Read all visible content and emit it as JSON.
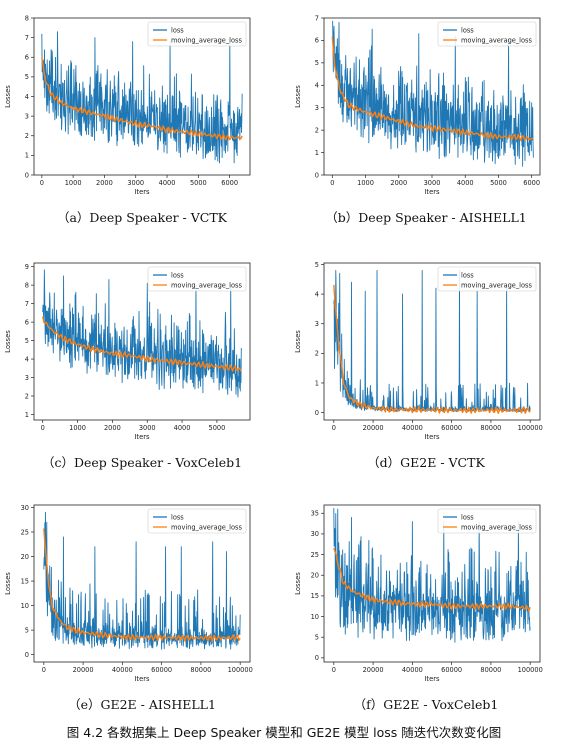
{
  "colors": {
    "raw": "#1f77b4",
    "avg": "#ff7f0e",
    "axis": "#222222"
  },
  "figure_caption": "图 4.2 各数据集上 Deep Speaker 模型和 GE2E 模型 loss 随迭代次数变化图",
  "chart_data": [
    {
      "type": "line",
      "caption": "（a）Deep Speaker - VCTK",
      "xlabel": "Iters",
      "ylabel": "Losses",
      "xlim": [
        -250,
        6650
      ],
      "ylim": [
        0,
        8
      ],
      "xticks": [
        0,
        1000,
        2000,
        3000,
        4000,
        5000,
        6000
      ],
      "yticks": [
        0,
        1,
        2,
        3,
        4,
        5,
        6,
        7,
        8
      ],
      "legend": "top-right",
      "series": [
        {
          "name": "loss",
          "profile": "ds",
          "xmax": 6400,
          "noise": [
            2.5,
            1.5,
            1.9
          ],
          "spikes": [
            [
              500,
              7.3
            ],
            [
              1700,
              7.0
            ],
            [
              2900,
              6.8
            ],
            [
              4100,
              6.8
            ],
            [
              6000,
              6.9
            ]
          ]
        },
        {
          "name": "moving_average_loss",
          "x": [
            0,
            100,
            300,
            600,
            1000,
            1500,
            2000,
            2500,
            3000,
            3500,
            4000,
            4500,
            5000,
            5500,
            6000,
            6400
          ],
          "y": [
            6.0,
            4.9,
            4.1,
            3.7,
            3.4,
            3.2,
            3.0,
            2.8,
            2.6,
            2.5,
            2.3,
            2.2,
            2.1,
            2.0,
            1.9,
            1.9
          ]
        }
      ]
    },
    {
      "type": "line",
      "caption": "（b）Deep Speaker - AISHELL1",
      "xlabel": "Iters",
      "ylabel": "Losses",
      "xlim": [
        -250,
        6250
      ],
      "ylim": [
        0,
        7
      ],
      "xticks": [
        0,
        1000,
        2000,
        3000,
        4000,
        5000,
        6000
      ],
      "yticks": [
        0,
        1,
        2,
        3,
        4,
        5,
        6,
        7
      ],
      "legend": "top-right",
      "series": [
        {
          "name": "loss",
          "profile": "ds",
          "xmax": 6050,
          "noise": [
            2.6,
            1.4,
            1.9
          ],
          "spikes": [
            [
              200,
              6.8
            ],
            [
              1200,
              6.5
            ],
            [
              2600,
              6.3
            ],
            [
              3700,
              6.2
            ],
            [
              5300,
              6.1
            ]
          ]
        },
        {
          "name": "moving_average_loss",
          "x": [
            0,
            80,
            250,
            500,
            1000,
            1500,
            2000,
            2500,
            3000,
            3500,
            4000,
            4500,
            5000,
            5500,
            6050
          ],
          "y": [
            6.1,
            4.8,
            3.7,
            3.1,
            2.8,
            2.6,
            2.4,
            2.2,
            2.1,
            2.0,
            1.9,
            1.8,
            1.7,
            1.7,
            1.6
          ]
        }
      ]
    },
    {
      "type": "line",
      "caption": "（c）Deep Speaker - VoxCeleb1",
      "xlabel": "Iters",
      "ylabel": "Losses",
      "xlim": [
        -250,
        5950
      ],
      "ylim": [
        0.7,
        9.2
      ],
      "xticks": [
        0,
        1000,
        2000,
        3000,
        4000,
        5000
      ],
      "yticks": [
        1,
        2,
        3,
        4,
        5,
        6,
        7,
        8,
        9
      ],
      "legend": "top-right",
      "series": [
        {
          "name": "loss",
          "profile": "ds",
          "xmax": 5700,
          "noise": [
            2.3,
            1.6,
            2.0
          ],
          "spikes": [
            [
              600,
              8.5
            ],
            [
              1900,
              8.3
            ],
            [
              3000,
              8.1
            ],
            [
              4400,
              8.0
            ],
            [
              5400,
              8.0
            ]
          ]
        },
        {
          "name": "moving_average_loss",
          "x": [
            0,
            100,
            300,
            600,
            1000,
            1500,
            2000,
            2500,
            3000,
            3500,
            4000,
            4500,
            5000,
            5500,
            5700
          ],
          "y": [
            6.2,
            5.9,
            5.5,
            5.1,
            4.8,
            4.5,
            4.3,
            4.2,
            4.0,
            3.9,
            3.8,
            3.7,
            3.6,
            3.5,
            3.4
          ]
        }
      ]
    },
    {
      "type": "line",
      "caption": "（d）GE2E - VCTK",
      "xlabel": "Iters",
      "ylabel": "Losses",
      "xlim": [
        -5000,
        105000
      ],
      "ylim": [
        -0.25,
        5.05
      ],
      "xticks": [
        0,
        20000,
        40000,
        60000,
        80000,
        100000
      ],
      "yticks": [
        0,
        1,
        2,
        3,
        4,
        5
      ],
      "legend": "top-right",
      "series": [
        {
          "name": "loss",
          "profile": "ge2e",
          "xmax": 100000,
          "noise": [
            0.9,
            0.15,
            0.4
          ],
          "spikes": [
            [
              1000,
              4.8
            ],
            [
              3000,
              4.7
            ],
            [
              9000,
              4.4
            ],
            [
              16000,
              4.1
            ],
            [
              22000,
              4.8
            ],
            [
              35000,
              4.0
            ],
            [
              45000,
              4.8
            ],
            [
              52000,
              4.2
            ],
            [
              64000,
              4.8
            ],
            [
              73000,
              4.1
            ],
            [
              88000,
              4.3
            ]
          ]
        },
        {
          "name": "moving_average_loss",
          "x": [
            0,
            2000,
            5000,
            8000,
            12000,
            20000,
            30000,
            40000,
            60000,
            80000,
            100000
          ],
          "y": [
            4.3,
            2.6,
            1.0,
            0.5,
            0.3,
            0.15,
            0.1,
            0.1,
            0.08,
            0.08,
            0.08
          ]
        }
      ]
    },
    {
      "type": "line",
      "caption": "（e）GE2E - AISHELL1",
      "xlabel": "Iters",
      "ylabel": "Losses",
      "xlim": [
        -5000,
        105000
      ],
      "ylim": [
        -1.5,
        30.5
      ],
      "xticks": [
        0,
        20000,
        40000,
        60000,
        80000,
        100000
      ],
      "yticks": [
        0,
        5,
        10,
        15,
        20,
        25,
        30
      ],
      "legend": "top-right",
      "series": [
        {
          "name": "loss",
          "profile": "ge2e",
          "xmax": 100000,
          "noise": [
            9.0,
            3.5,
            7.5
          ],
          "spikes": [
            [
              800,
              29
            ],
            [
              1500,
              27
            ],
            [
              10000,
              24
            ],
            [
              26000,
              22
            ],
            [
              47000,
              23
            ],
            [
              62000,
              22
            ],
            [
              70000,
              22
            ],
            [
              86000,
              23
            ],
            [
              93000,
              21
            ]
          ]
        },
        {
          "name": "moving_average_loss",
          "x": [
            0,
            1500,
            4000,
            8000,
            12000,
            20000,
            30000,
            40000,
            50000,
            60000,
            70000,
            80000,
            90000,
            100000
          ],
          "y": [
            26,
            18,
            10,
            7,
            5.5,
            4.5,
            4.0,
            3.6,
            3.5,
            3.5,
            3.4,
            3.4,
            3.4,
            3.5
          ]
        }
      ]
    },
    {
      "type": "line",
      "caption": "（f）GE2E - VoxCeleb1",
      "xlabel": "Iters",
      "ylabel": "Losses",
      "xlim": [
        -5000,
        105000
      ],
      "ylim": [
        -1,
        37
      ],
      "xticks": [
        0,
        20000,
        40000,
        60000,
        80000,
        100000
      ],
      "yticks": [
        0,
        5,
        10,
        15,
        20,
        25,
        30,
        35
      ],
      "legend": "top-right",
      "series": [
        {
          "name": "loss",
          "profile": "ge2e",
          "xmax": 100000,
          "noise": [
            10,
            7,
            10
          ],
          "spikes": [
            [
              2000,
              36
            ],
            [
              9000,
              34
            ],
            [
              40000,
              33
            ],
            [
              56000,
              33
            ],
            [
              74000,
              33
            ],
            [
              94000,
              33
            ]
          ]
        },
        {
          "name": "moving_average_loss",
          "x": [
            0,
            2000,
            5000,
            10000,
            15000,
            20000,
            30000,
            40000,
            50000,
            60000,
            70000,
            80000,
            90000,
            100000
          ],
          "y": [
            27,
            23,
            18,
            16,
            15,
            14,
            13.5,
            13,
            13,
            12.5,
            12.5,
            12.5,
            12.5,
            12
          ]
        }
      ]
    }
  ]
}
